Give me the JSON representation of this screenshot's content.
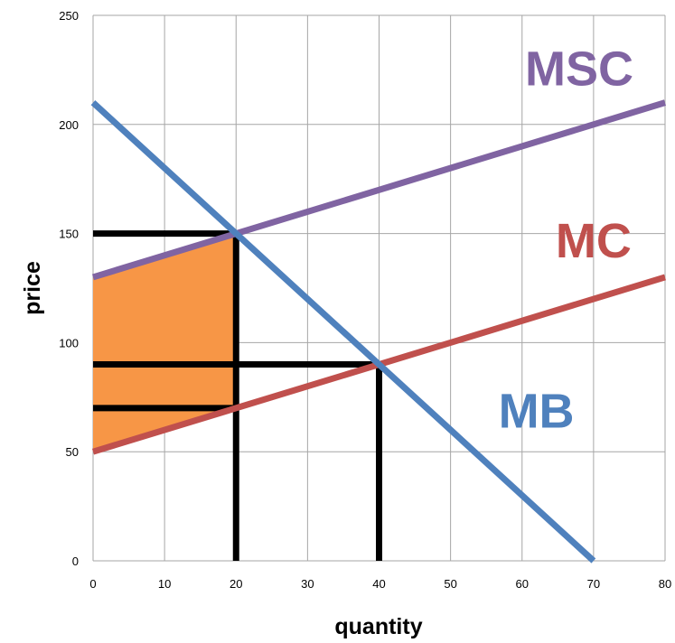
{
  "chart_data": {
    "type": "line",
    "title": "",
    "xlabel": "quantity",
    "ylabel": "price",
    "xlim": [
      0,
      80
    ],
    "ylim": [
      0,
      250
    ],
    "xticks": [
      0,
      10,
      20,
      30,
      40,
      50,
      60,
      70,
      80
    ],
    "yticks": [
      0,
      50,
      100,
      150,
      200,
      250
    ],
    "grid": true,
    "series": [
      {
        "name": "MSC",
        "color": "#8064a2",
        "points": [
          [
            0,
            130
          ],
          [
            80,
            210
          ]
        ],
        "label_at": [
          68,
          218
        ]
      },
      {
        "name": "MC",
        "color": "#c0504d",
        "points": [
          [
            0,
            50
          ],
          [
            80,
            130
          ]
        ],
        "label_at": [
          70,
          139
        ]
      },
      {
        "name": "MB",
        "color": "#4f81bd",
        "points": [
          [
            0,
            210
          ],
          [
            70,
            0
          ]
        ],
        "label_at": [
          62,
          61
        ]
      }
    ],
    "shaded_region": {
      "color": "#f79646",
      "polygon": [
        [
          0,
          130
        ],
        [
          20,
          150
        ],
        [
          20,
          70
        ],
        [
          0,
          50
        ]
      ]
    },
    "reference_lines": [
      {
        "from": [
          0,
          150
        ],
        "to": [
          20,
          150
        ]
      },
      {
        "from": [
          0,
          90
        ],
        "to": [
          40,
          90
        ]
      },
      {
        "from": [
          0,
          70
        ],
        "to": [
          20,
          70
        ]
      },
      {
        "from": [
          20,
          0
        ],
        "to": [
          20,
          150
        ]
      },
      {
        "from": [
          40,
          0
        ],
        "to": [
          40,
          90
        ]
      }
    ]
  }
}
